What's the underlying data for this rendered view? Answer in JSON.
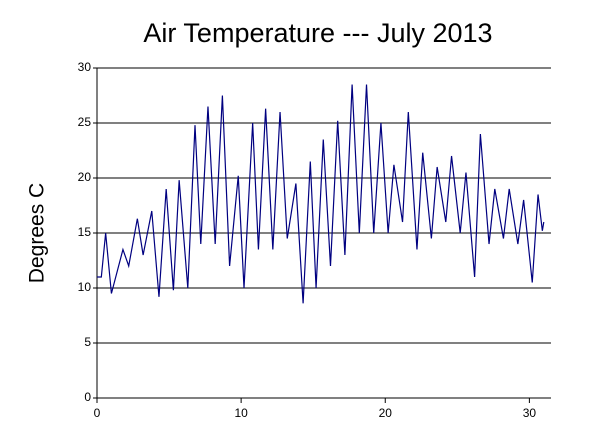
{
  "chart_data": {
    "type": "line",
    "title": "Air Temperature --- July 2013",
    "y_label": "Degrees C",
    "series": [
      {
        "name": "Air Temperature",
        "color": "#000080",
        "x": [
          0,
          0.3,
          0.6,
          1.0,
          1.8,
          2.2,
          2.8,
          3.2,
          3.8,
          4.3,
          4.8,
          5.3,
          5.7,
          6.3,
          6.8,
          7.2,
          7.7,
          8.2,
          8.7,
          9.2,
          9.8,
          10.2,
          10.8,
          11.2,
          11.7,
          12.2,
          12.7,
          13.2,
          13.8,
          14.3,
          14.8,
          15.2,
          15.7,
          16.2,
          16.7,
          17.2,
          17.7,
          18.2,
          18.7,
          19.2,
          19.7,
          20.2,
          20.6,
          21.2,
          21.6,
          22.2,
          22.6,
          23.2,
          23.6,
          24.2,
          24.6,
          25.2,
          25.6,
          26.2,
          26.6,
          27.2,
          27.6,
          28.2,
          28.6,
          29.2,
          29.6,
          30.2,
          30.6,
          30.9,
          31.0
        ],
        "values": [
          11,
          11,
          15,
          9.5,
          13.5,
          12,
          16.3,
          13,
          17,
          9.2,
          19,
          9.8,
          19.8,
          10,
          24.8,
          14,
          26.5,
          14,
          27.5,
          12,
          20.2,
          10,
          25,
          13.5,
          26.3,
          13.5,
          26,
          14.5,
          19.5,
          8.6,
          21.5,
          10,
          23.5,
          12,
          25.2,
          13,
          28.5,
          15,
          28.5,
          15,
          25,
          15,
          21.2,
          16,
          26,
          13.5,
          22.3,
          14.5,
          21,
          16,
          22,
          15,
          20.5,
          11,
          24,
          14,
          19,
          14.5,
          19,
          14,
          18,
          10.5,
          18.5,
          15.2,
          16
        ]
      }
    ],
    "xlim": [
      0,
      31.5
    ],
    "xticks": [
      0,
      10,
      20,
      30
    ],
    "ylim": [
      0,
      30
    ],
    "yticks": [
      0,
      5,
      10,
      15,
      20,
      25,
      30
    ],
    "grid": true
  }
}
